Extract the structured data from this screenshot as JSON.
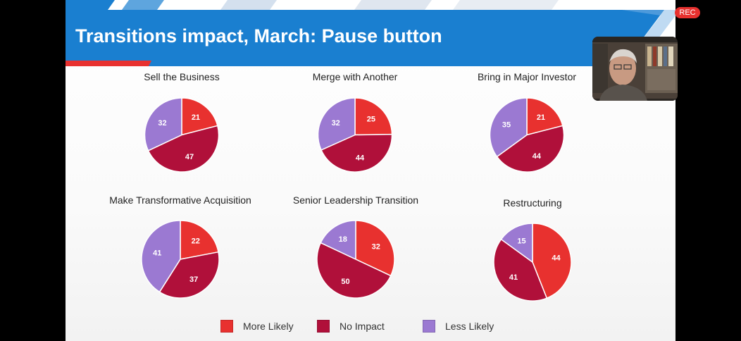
{
  "slide": {
    "title": "Transitions impact, March: Pause button"
  },
  "overlay": {
    "rec": "REC"
  },
  "colors": {
    "more_likely": "#e8312f",
    "no_impact": "#b0103a",
    "less_likely": "#9b79d2",
    "banner": "#1a7fd0",
    "accent_red": "#e8312f"
  },
  "legend": [
    {
      "label": "More Likely",
      "color": "#e8312f"
    },
    {
      "label": "No Impact",
      "color": "#b0103a"
    },
    {
      "label": "Less Likely",
      "color": "#9b79d2"
    }
  ],
  "chart_data": [
    {
      "type": "pie",
      "title": "Sell the Business",
      "categories": [
        "More Likely",
        "No Impact",
        "Less Likely"
      ],
      "values": [
        21,
        47,
        32
      ]
    },
    {
      "type": "pie",
      "title": "Merge with Another",
      "categories": [
        "More Likely",
        "No Impact",
        "Less Likely"
      ],
      "values": [
        25,
        44,
        32
      ]
    },
    {
      "type": "pie",
      "title": "Bring in Major Investor",
      "categories": [
        "More Likely",
        "No Impact",
        "Less Likely"
      ],
      "values": [
        21,
        44,
        35
      ]
    },
    {
      "type": "pie",
      "title": "Make Transformative Acquisition",
      "categories": [
        "More Likely",
        "No Impact",
        "Less Likely"
      ],
      "values": [
        22,
        37,
        41
      ]
    },
    {
      "type": "pie",
      "title": "Senior Leadership Transition",
      "categories": [
        "More Likely",
        "No Impact",
        "Less Likely"
      ],
      "values": [
        32,
        50,
        18
      ]
    },
    {
      "type": "pie",
      "title": "Restructuring",
      "categories": [
        "More Likely",
        "No Impact",
        "Less Likely"
      ],
      "values": [
        44,
        41,
        15
      ]
    }
  ]
}
